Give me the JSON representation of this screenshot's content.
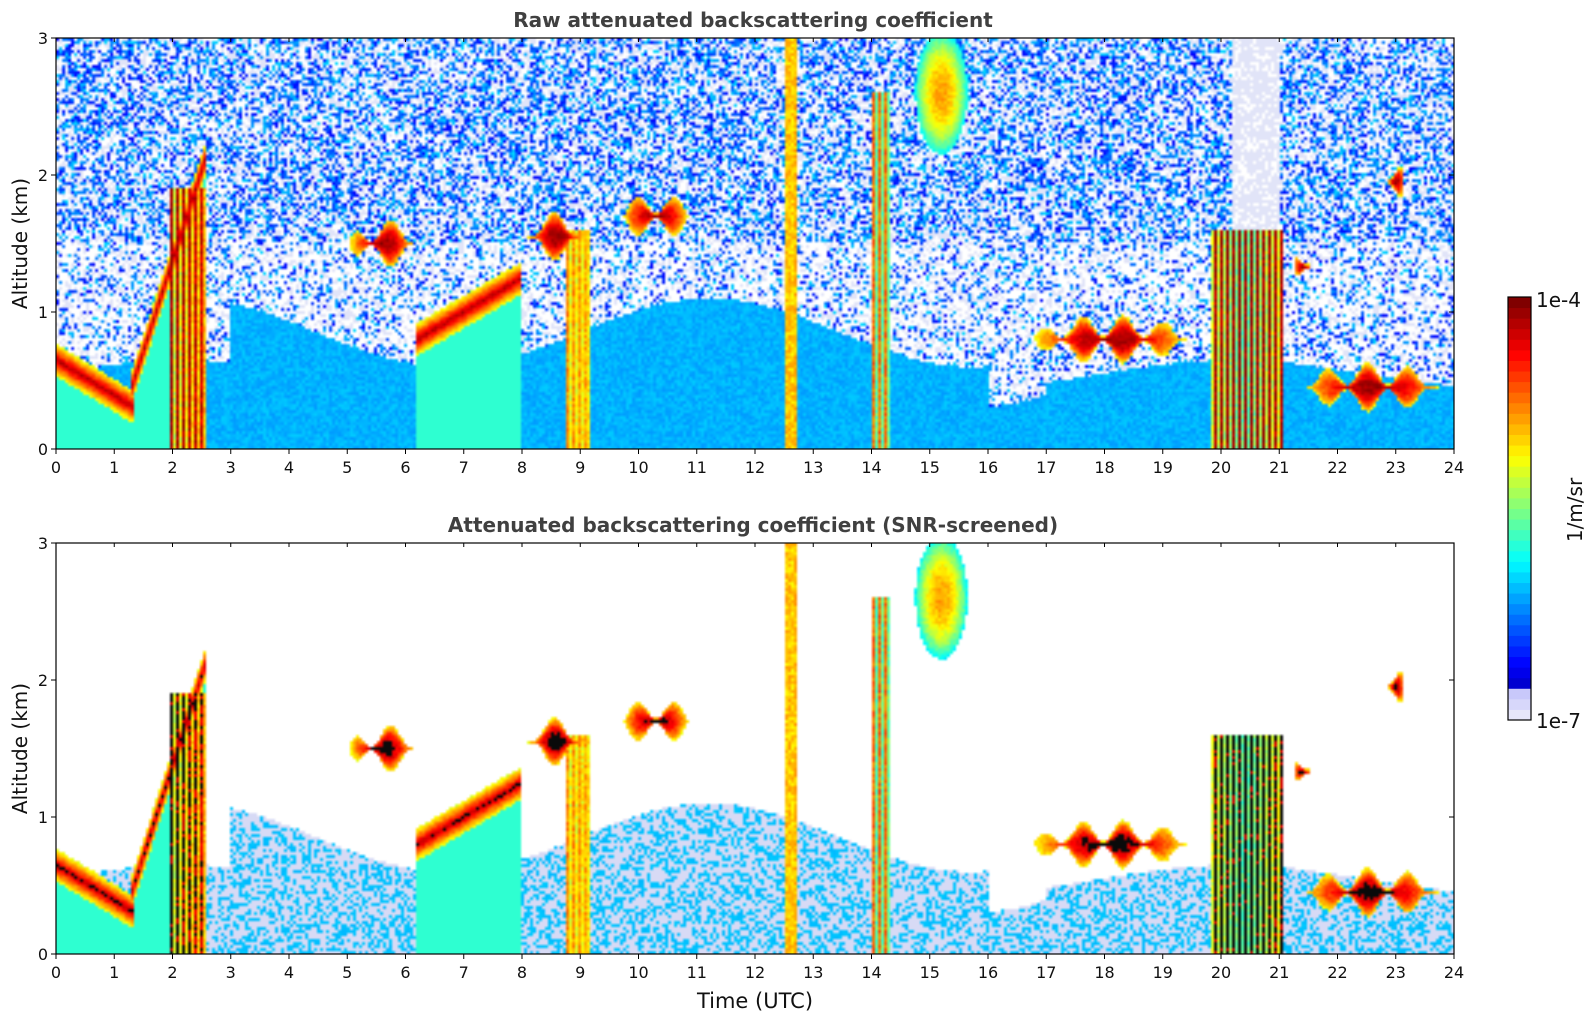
{
  "chart_data": [
    {
      "type": "heatmap",
      "title": "Raw attenuated backscattering coefficient",
      "xlabel": "",
      "ylabel": "Altitude (km)",
      "xlim": [
        0,
        24
      ],
      "ylim": [
        0,
        3
      ],
      "x_ticks": [
        "0",
        "1",
        "2",
        "3",
        "4",
        "5",
        "6",
        "7",
        "8",
        "9",
        "10",
        "11",
        "12",
        "13",
        "14",
        "15",
        "16",
        "17",
        "18",
        "19",
        "20",
        "21",
        "22",
        "23",
        "24"
      ],
      "y_ticks": [
        "0",
        "1",
        "2",
        "3"
      ],
      "screened": false,
      "features": [
        {
          "kind": "boundary_layer",
          "t_start": 0.0,
          "t_end": 1.35,
          "alt_start": 0.65,
          "alt_end": 0.3
        },
        {
          "kind": "rising_layer",
          "t_start": 1.3,
          "t_end": 2.55,
          "alt_start": 0.45,
          "alt_end": 2.1
        },
        {
          "kind": "precip_column",
          "t_start": 1.95,
          "t_end": 2.6,
          "alt_top": 1.9
        },
        {
          "kind": "cloud",
          "t": 5.6,
          "alt": 1.5,
          "width": 1.1
        },
        {
          "kind": "rising_layer",
          "t_start": 6.2,
          "t_end": 8.0,
          "alt_start": 0.8,
          "alt_end": 1.25
        },
        {
          "kind": "cloud",
          "t": 8.6,
          "alt": 1.55,
          "width": 1.0
        },
        {
          "kind": "precip_column",
          "t_start": 8.75,
          "t_end": 9.15,
          "alt_top": 1.6
        },
        {
          "kind": "cloud",
          "t": 10.3,
          "alt": 1.7,
          "width": 1.1
        },
        {
          "kind": "precip_column",
          "t_start": 12.5,
          "t_end": 12.7,
          "alt_top": 3.0
        },
        {
          "kind": "precip_column",
          "t_start": 14.0,
          "t_end": 14.3,
          "alt_top": 2.6
        },
        {
          "kind": "high_cloud",
          "t": 15.2,
          "alt": 2.6,
          "width": 0.9
        },
        {
          "kind": "cloud",
          "t": 18.1,
          "alt": 0.8,
          "width": 2.6
        },
        {
          "kind": "precip_column",
          "t_start": 19.85,
          "t_end": 21.05,
          "alt_top": 1.6
        },
        {
          "kind": "cloud",
          "t": 21.4,
          "alt": 1.33,
          "width": 0.3
        },
        {
          "kind": "cloud",
          "t": 22.6,
          "alt": 0.45,
          "width": 2.3
        },
        {
          "kind": "cloud",
          "t": 23.0,
          "alt": 1.95,
          "width": 0.3
        }
      ]
    },
    {
      "type": "heatmap",
      "title": "Attenuated backscattering coefficient (SNR-screened)",
      "xlabel": "Time (UTC)",
      "ylabel": "Altitude (km)",
      "xlim": [
        0,
        24
      ],
      "ylim": [
        0,
        3
      ],
      "x_ticks": [
        "0",
        "1",
        "2",
        "3",
        "4",
        "5",
        "6",
        "7",
        "8",
        "9",
        "10",
        "11",
        "12",
        "13",
        "14",
        "15",
        "16",
        "17",
        "18",
        "19",
        "20",
        "21",
        "22",
        "23",
        "24"
      ],
      "y_ticks": [
        "0",
        "1",
        "2",
        "3"
      ],
      "screened": true
    }
  ],
  "colorbar": {
    "label": "1/m/sr",
    "max_label": "1e-4",
    "min_label": "1e-7",
    "range": [
      1e-07,
      0.0001
    ],
    "scale": "log",
    "colormap": "jet"
  }
}
